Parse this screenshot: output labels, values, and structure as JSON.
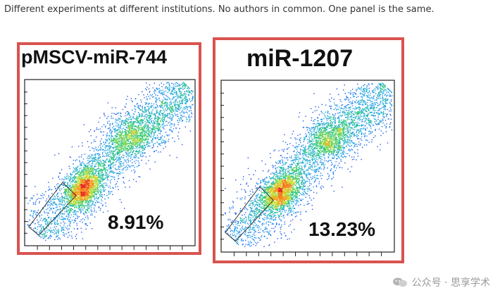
{
  "caption": "Different experiments at different institutions. No authors in common. One panel is the same.",
  "watermark": "公众号 · 思享学术",
  "colors": {
    "frame": "#d9534f"
  },
  "chart_data": [
    {
      "type": "scatter",
      "title": "pMSCV-miR-744",
      "annotation": "8.91%",
      "gate": "polygon",
      "xlabel": "",
      "ylabel": ""
    },
    {
      "type": "scatter",
      "title": "miR-1207",
      "annotation": "13.23%",
      "gate": "polygon",
      "xlabel": "",
      "ylabel": ""
    }
  ]
}
